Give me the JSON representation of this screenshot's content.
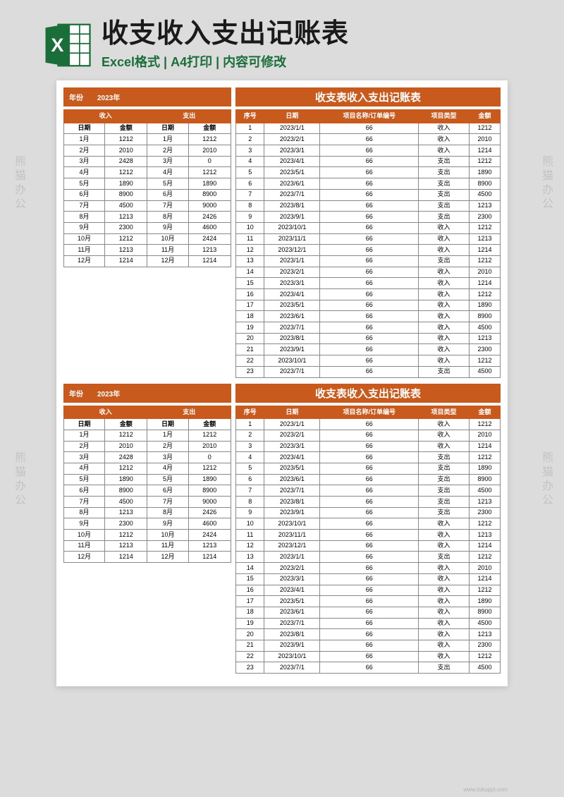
{
  "header": {
    "main_title": "收支收入支出记账表",
    "sub_title": "Excel格式 | A4打印 | 内容可修改",
    "excel_icon_color": "#1a6e3a"
  },
  "watermark": "熊猫办公",
  "footer": "www.tukuppt.com",
  "section": {
    "year_label": "年份",
    "year_value": "2023年",
    "big_title": "收支表收入支出记账表",
    "left_headers": {
      "income": "收入",
      "expense": "支出",
      "date": "日期",
      "amount": "金额"
    },
    "left_rows": [
      [
        "1月",
        "1212",
        "1月",
        "1212"
      ],
      [
        "2月",
        "2010",
        "2月",
        "2010"
      ],
      [
        "3月",
        "2428",
        "3月",
        "0"
      ],
      [
        "4月",
        "1212",
        "4月",
        "1212"
      ],
      [
        "5月",
        "1890",
        "5月",
        "1890"
      ],
      [
        "6月",
        "8900",
        "6月",
        "8900"
      ],
      [
        "7月",
        "4500",
        "7月",
        "9000"
      ],
      [
        "8月",
        "1213",
        "8月",
        "2426"
      ],
      [
        "9月",
        "2300",
        "9月",
        "4600"
      ],
      [
        "10月",
        "1212",
        "10月",
        "2424"
      ],
      [
        "11月",
        "1213",
        "11月",
        "1213"
      ],
      [
        "12月",
        "1214",
        "12月",
        "1214"
      ]
    ],
    "right_headers": [
      "序号",
      "日期",
      "项目名称/订单编号",
      "项目类型",
      "金额"
    ],
    "right_rows": [
      [
        "1",
        "2023/1/1",
        "66",
        "收入",
        "1212"
      ],
      [
        "2",
        "2023/2/1",
        "66",
        "收入",
        "2010"
      ],
      [
        "3",
        "2023/3/1",
        "66",
        "收入",
        "1214"
      ],
      [
        "4",
        "2023/4/1",
        "66",
        "支出",
        "1212"
      ],
      [
        "5",
        "2023/5/1",
        "66",
        "支出",
        "1890"
      ],
      [
        "6",
        "2023/6/1",
        "66",
        "支出",
        "8900"
      ],
      [
        "7",
        "2023/7/1",
        "66",
        "支出",
        "4500"
      ],
      [
        "8",
        "2023/8/1",
        "66",
        "支出",
        "1213"
      ],
      [
        "9",
        "2023/9/1",
        "66",
        "支出",
        "2300"
      ],
      [
        "10",
        "2023/10/1",
        "66",
        "收入",
        "1212"
      ],
      [
        "11",
        "2023/11/1",
        "66",
        "收入",
        "1213"
      ],
      [
        "12",
        "2023/12/1",
        "66",
        "收入",
        "1214"
      ],
      [
        "13",
        "2023/1/1",
        "66",
        "支出",
        "1212"
      ],
      [
        "14",
        "2023/2/1",
        "66",
        "收入",
        "2010"
      ],
      [
        "15",
        "2023/3/1",
        "66",
        "收入",
        "1214"
      ],
      [
        "16",
        "2023/4/1",
        "66",
        "收入",
        "1212"
      ],
      [
        "17",
        "2023/5/1",
        "66",
        "收入",
        "1890"
      ],
      [
        "18",
        "2023/6/1",
        "66",
        "收入",
        "8900"
      ],
      [
        "19",
        "2023/7/1",
        "66",
        "收入",
        "4500"
      ],
      [
        "20",
        "2023/8/1",
        "66",
        "收入",
        "1213"
      ],
      [
        "21",
        "2023/9/1",
        "66",
        "收入",
        "2300"
      ],
      [
        "22",
        "2023/10/1",
        "66",
        "收入",
        "1212"
      ],
      [
        "23",
        "2023/7/1",
        "66",
        "支出",
        "4500"
      ]
    ]
  },
  "colors": {
    "accent": "#c85a1e",
    "excel_green": "#1a6e3a",
    "paper_bg": "#ffffff",
    "page_bg": "#dcdcdc",
    "border": "#888888"
  }
}
